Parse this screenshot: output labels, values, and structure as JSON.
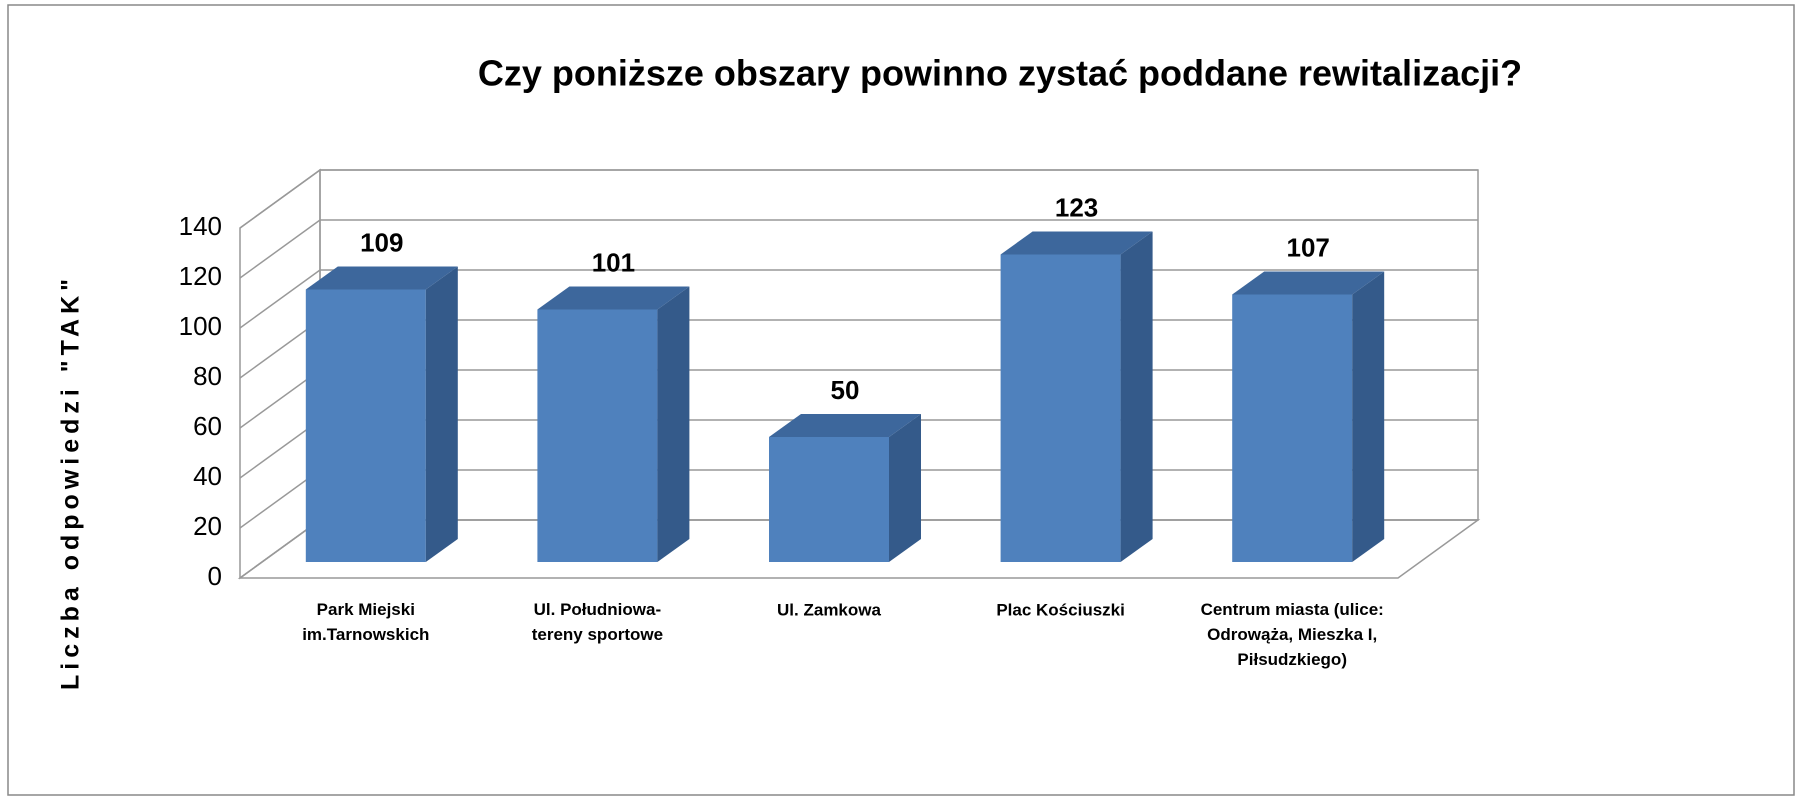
{
  "chart_data": {
    "type": "bar3d",
    "title": "Czy poniższe obszary powinno zystać poddane rewitalizacji?",
    "y_label": "Liczba odpowiedzi \"TAK\"",
    "categories": [
      "Park Miejski\nim.Tarnowskich",
      "Ul. Południowa-\ntereny sportowe",
      "Ul. Zamkowa",
      "Plac Kościuszki",
      "Centrum miasta (ulice:\nOdrowąża, Mieszka I,\nPiłsudzkiego)"
    ],
    "values": [
      109,
      101,
      50,
      123,
      107
    ],
    "color": "#4f81bd",
    "ylim": [
      0,
      140
    ],
    "yticks": [
      0,
      20,
      40,
      60,
      80,
      100,
      120,
      140
    ],
    "grid": true
  }
}
